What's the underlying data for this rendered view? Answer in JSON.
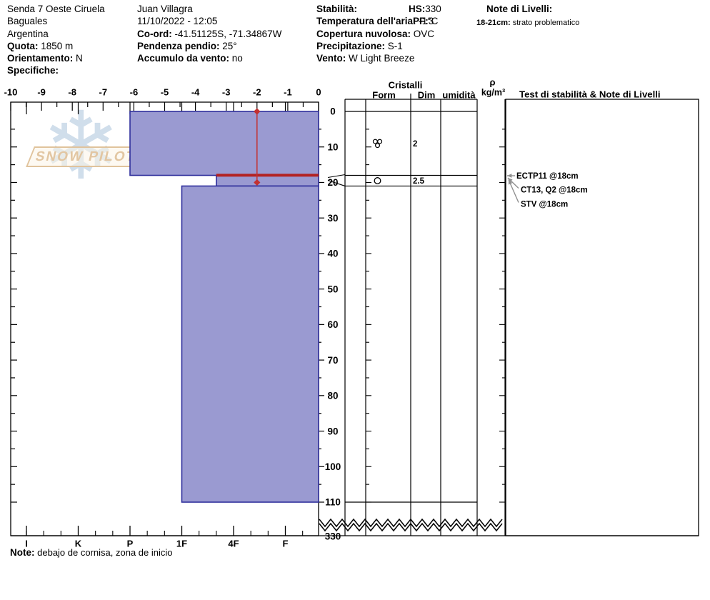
{
  "header": {
    "site": {
      "name": "Senda 7 Oeste Ciruela",
      "region": "Baguales",
      "country": "Argentina",
      "quota_label": "Quota:",
      "quota_value": "1850 m",
      "orientamento_label": "Orientamento:",
      "orientamento_value": "N",
      "specifiche_label": "Specifiche:"
    },
    "observation": {
      "observer": "Juan Villagra",
      "datetime": "11/10/2022 - 12:05",
      "coord_label": "Co-ord:",
      "coord_value": "-41.51125S, -71.34867W",
      "pendenza_label": "Pendenza pendio:",
      "pendenza_value": "25°",
      "accumulo_label": "Accumulo da vento:",
      "accumulo_value": "no"
    },
    "conditions": {
      "stabilita_label": "Stabilità:",
      "hs_label": "HS:",
      "hs_value": "330",
      "note_livelli_label": "Note di Livelli:",
      "temp_label": "Temperatura dell'aria:",
      "temp_value": "-1°C",
      "pf_label": "PF:",
      "pf_value": "3",
      "layer_note_label": "18-21cm:",
      "layer_note_value": "strato problematico",
      "copertura_label": "Copertura nuvolosa:",
      "copertura_value": "OVC",
      "precipitazione_label": "Precipitazione:",
      "precipitazione_value": "S-1",
      "vento_label": "Vento:",
      "vento_value": "W Light Breeze"
    }
  },
  "watermark": {
    "text": "SNOW PILOT",
    "snowflake_icon": "❄"
  },
  "chart_data": {
    "type": "snow-profile",
    "temperature_axis": {
      "min": -10,
      "max": 0,
      "major_step": 1,
      "minor_step": 0.5,
      "unit": "°C"
    },
    "hardness_axis": {
      "categories": [
        "I",
        "K",
        "P",
        "1F",
        "4F",
        "F"
      ]
    },
    "depth_axis": {
      "min": 0,
      "max": 110,
      "label_step": 10,
      "minor_step": 5,
      "unit": "cm",
      "break_label": "330"
    },
    "hs_total_cm": 330,
    "layers": [
      {
        "top_cm": 0,
        "bottom_cm": 18,
        "hardness": "P",
        "grain_form": "MFcl",
        "grain_size_mm": "2",
        "flagged": false
      },
      {
        "top_cm": 18,
        "bottom_cm": 21,
        "hardness": "4F+",
        "grain_form": "MF",
        "grain_size_mm": "2.5",
        "flagged": true
      },
      {
        "top_cm": 21,
        "bottom_cm": 110,
        "hardness": "1F",
        "grain_form": "",
        "grain_size_mm": "",
        "flagged": false
      }
    ],
    "temperature_profile": [
      {
        "depth_cm": 0,
        "temp_c": -2
      },
      {
        "depth_cm": 20,
        "temp_c": -2
      }
    ],
    "stability_tests": [
      {
        "label": "ECTP11 @18cm",
        "depth_cm": 18
      },
      {
        "label": "CT13, Q2 @18cm",
        "depth_cm": 18
      },
      {
        "label": "STV @18cm",
        "depth_cm": 18
      }
    ],
    "table": {
      "cristalli_header": "Cristalli",
      "form_header": "Form",
      "dim_header": "Dim",
      "umidita_header": "umidità",
      "rho_symbol": "ρ",
      "rho_unit": "kg/m³",
      "tests_header": "Test di stabilità & Note di Livelli"
    },
    "colors": {
      "bar_fill": "#9a9ad1",
      "bar_border": "#2f2f9c",
      "temp_line": "#c23030",
      "flag_line": "#b32222",
      "annotation_arrow": "#8f8f8f"
    }
  },
  "footer": {
    "note_label": "Note:",
    "note_value": "debajo de cornisa, zona de inicio"
  }
}
